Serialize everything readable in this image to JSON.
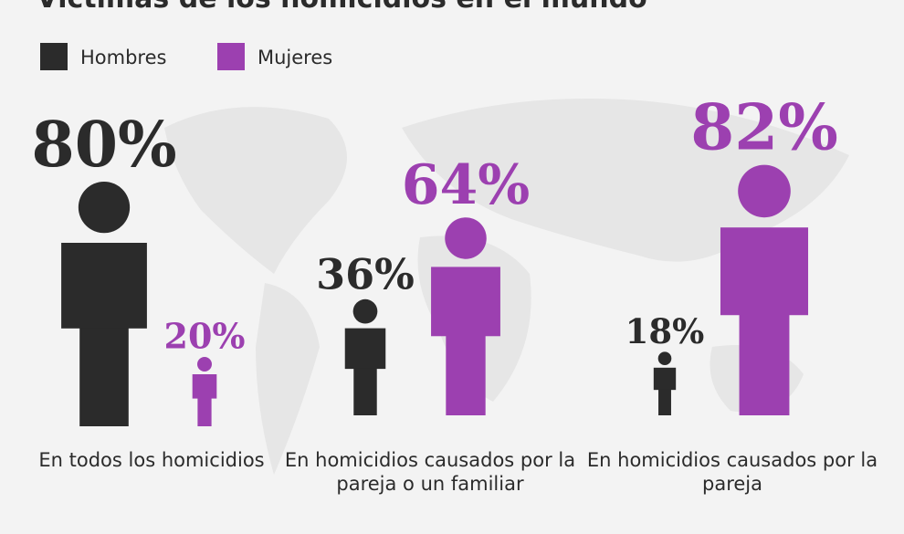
{
  "chart_data": {
    "type": "pictogram",
    "title": "Víctimas de los homicidios en el mundo",
    "categories": [
      "En todos los homicidios",
      "En homicidios causados por la pareja o un familiar",
      "En homicidios causados por la pareja"
    ],
    "series": [
      {
        "name": "Hombres",
        "color": "#2b2b2b",
        "values": [
          80,
          36,
          18
        ],
        "value_labels": [
          "80%",
          "36%",
          "18%"
        ]
      },
      {
        "name": "Mujeres",
        "color": "#9c40b0",
        "values": [
          20,
          64,
          82
        ],
        "value_labels": [
          "20%",
          "64%",
          "82%"
        ]
      }
    ]
  }
}
